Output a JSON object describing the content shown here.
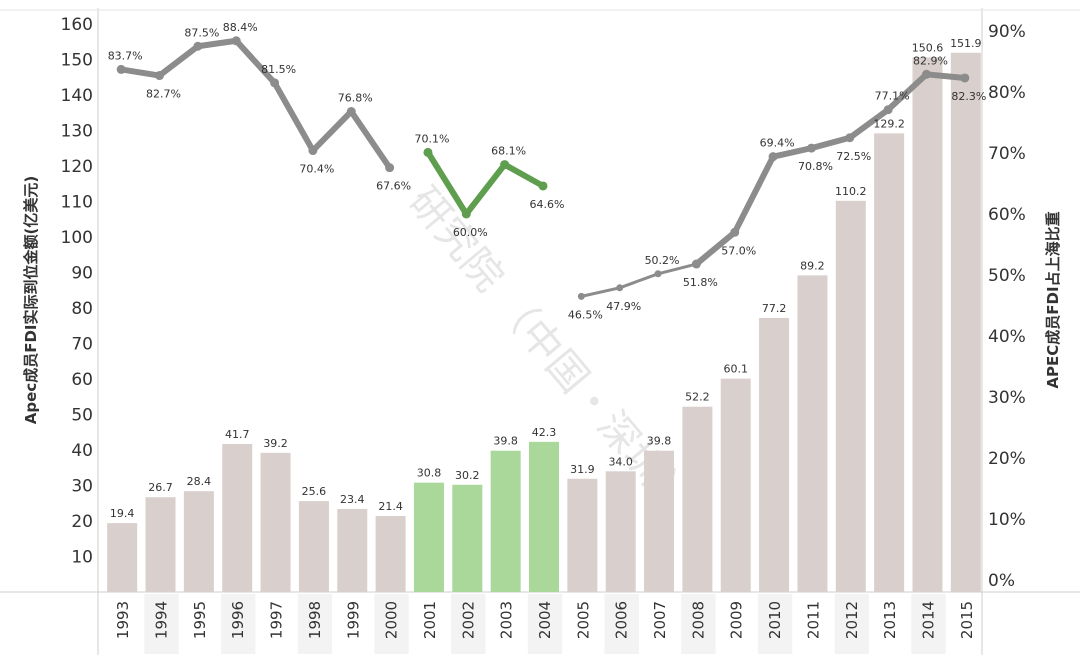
{
  "chart_data": {
    "type": "bar+line",
    "categories": [
      "1993",
      "1994",
      "1995",
      "1996",
      "1997",
      "1998",
      "1999",
      "2000",
      "2001",
      "2002",
      "2003",
      "2004",
      "2005",
      "2006",
      "2007",
      "2008",
      "2009",
      "2010",
      "2011",
      "2012",
      "2013",
      "2014",
      "2015"
    ],
    "bar_series": {
      "axis": "left",
      "values": [
        19.4,
        26.7,
        28.4,
        41.7,
        39.2,
        25.6,
        23.4,
        21.4,
        30.8,
        30.2,
        39.8,
        42.3,
        31.9,
        34.0,
        39.8,
        52.2,
        60.1,
        77.2,
        89.2,
        110.2,
        129.2,
        150.6,
        151.9
      ],
      "labels": [
        "19.4",
        "26.7",
        "28.4",
        "41.7",
        "39.2",
        "25.6",
        "23.4",
        "21.4",
        "30.8",
        "30.2",
        "39.8",
        "42.3",
        "31.9",
        "34.0",
        "39.8",
        "52.2",
        "60.1",
        "77.2",
        "89.2",
        "110.2",
        "129.2",
        "150.6",
        "151.9"
      ],
      "colors": [
        "#d9cfcc",
        "#d9cfcc",
        "#d9cfcc",
        "#d9cfcc",
        "#d9cfcc",
        "#d9cfcc",
        "#d9cfcc",
        "#d9cfcc",
        "#a9d89a",
        "#a9d89a",
        "#a9d89a",
        "#a9d89a",
        "#d9cfcc",
        "#d9cfcc",
        "#d9cfcc",
        "#d9cfcc",
        "#d9cfcc",
        "#d9cfcc",
        "#d9cfcc",
        "#d9cfcc",
        "#d9cfcc",
        "#d9cfcc",
        "#d9cfcc"
      ]
    },
    "line_segments": [
      {
        "axis": "right",
        "color": "#8c8c8c",
        "style": "thick",
        "points": [
          {
            "x": "1993",
            "y": 83.7,
            "label": "83.7%"
          },
          {
            "x": "1994",
            "y": 82.7,
            "label": "82.7%"
          },
          {
            "x": "1995",
            "y": 87.5,
            "label": "87.5%"
          },
          {
            "x": "1996",
            "y": 88.4,
            "label": "88.4%"
          },
          {
            "x": "1997",
            "y": 81.5,
            "label": "81.5%"
          },
          {
            "x": "1998",
            "y": 70.4,
            "label": "70.4%"
          },
          {
            "x": "1999",
            "y": 76.8,
            "label": "76.8%"
          },
          {
            "x": "2000",
            "y": 67.6,
            "label": "67.6%"
          }
        ]
      },
      {
        "axis": "right",
        "color": "#5e9e4e",
        "style": "thick",
        "points": [
          {
            "x": "2001",
            "y": 70.1,
            "label": "70.1%"
          },
          {
            "x": "2002",
            "y": 60.0,
            "label": "60.0%"
          },
          {
            "x": "2003",
            "y": 68.1,
            "label": "68.1%"
          },
          {
            "x": "2004",
            "y": 64.6,
            "label": "64.6%"
          }
        ]
      },
      {
        "axis": "right",
        "color": "#8c8c8c",
        "style": "thin",
        "points": [
          {
            "x": "2005",
            "y": 46.5,
            "label": "46.5%"
          },
          {
            "x": "2006",
            "y": 47.9,
            "label": "47.9%"
          },
          {
            "x": "2007",
            "y": 50.2,
            "label": "50.2%"
          },
          {
            "x": "2008",
            "y": 51.8,
            "label": "51.8%"
          }
        ]
      },
      {
        "axis": "right",
        "color": "#8c8c8c",
        "style": "thick",
        "points": [
          {
            "x": "2008",
            "y": 51.8,
            "label": ""
          },
          {
            "x": "2009",
            "y": 57.0,
            "label": "57.0%"
          },
          {
            "x": "2010",
            "y": 69.4,
            "label": "69.4%"
          },
          {
            "x": "2011",
            "y": 70.8,
            "label": "70.8%"
          },
          {
            "x": "2012",
            "y": 72.5,
            "label": "72.5%"
          },
          {
            "x": "2013",
            "y": 77.1,
            "label": "77.1%"
          },
          {
            "x": "2014",
            "y": 82.9,
            "label": "82.9%"
          },
          {
            "x": "2015",
            "y": 82.3,
            "label": "82.3%"
          }
        ]
      }
    ],
    "left_axis": {
      "label": "Apec成员FDI实际到位金额(亿美元)",
      "ticks": [
        "10",
        "20",
        "30",
        "40",
        "50",
        "60",
        "70",
        "80",
        "90",
        "100",
        "110",
        "120",
        "130",
        "140",
        "150",
        "160"
      ],
      "ylim": [
        0,
        160
      ]
    },
    "right_axis": {
      "label": "APEC成员FDI占上海比重",
      "ticks": [
        "0%",
        "10%",
        "20%",
        "30%",
        "40%",
        "50%",
        "60%",
        "70%",
        "80%",
        "90%"
      ],
      "ylim": [
        0,
        90
      ]
    },
    "grid": false,
    "legend": "none",
    "watermark": "研究院  （中国・深圳）"
  }
}
